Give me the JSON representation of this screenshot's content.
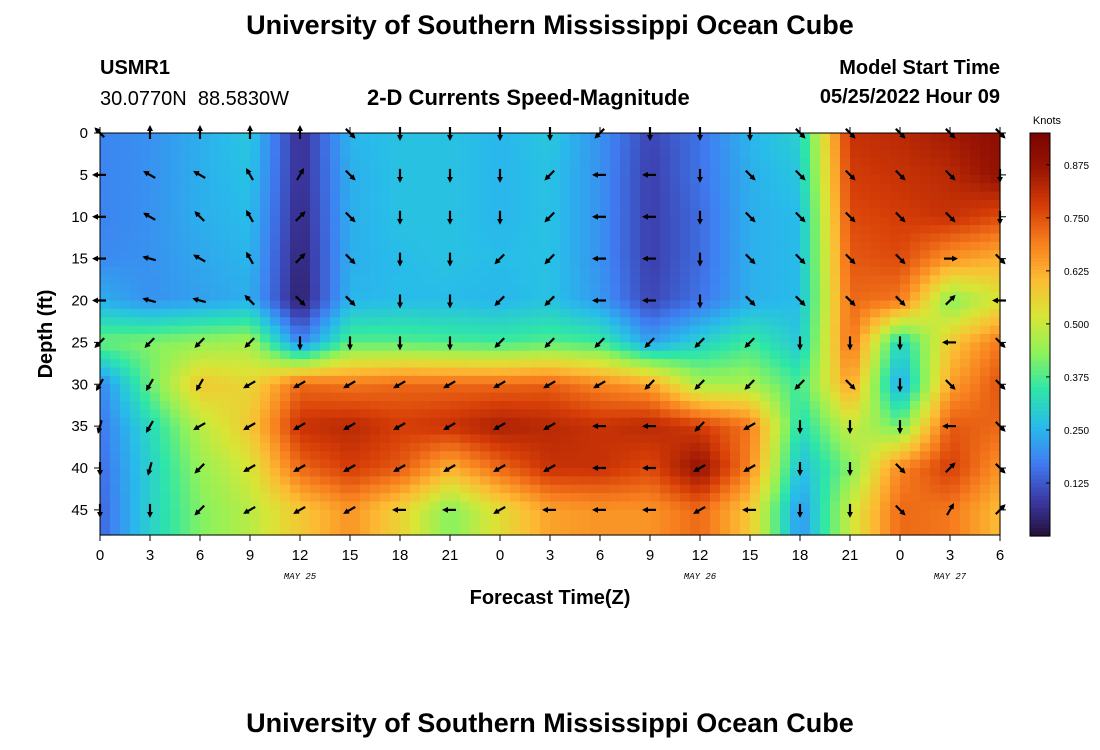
{
  "page": {
    "title": "University of Southern Mississippi Ocean Cube",
    "footer_title": "University of Southern Mississippi Ocean Cube"
  },
  "header": {
    "station_id": "USMR1",
    "coords": "30.0770N  88.5830W",
    "subtitle": "2-D Currents Speed-Magnitude",
    "start_label": "Model Start Time",
    "start_value": "05/25/2022 Hour 09"
  },
  "chart_data": {
    "type": "heatmap",
    "title": "2-D Currents Speed-Magnitude",
    "xlabel": "Forecast Time(Z)",
    "ylabel": "Depth (ft)",
    "colorbar_label": "Knots",
    "x_ticks": [
      "0",
      "3",
      "6",
      "9",
      "12",
      "15",
      "18",
      "21",
      "0",
      "3",
      "6",
      "9",
      "12",
      "15",
      "18",
      "21",
      "0",
      "3",
      "6"
    ],
    "x_hours": [
      0,
      3,
      6,
      9,
      12,
      15,
      18,
      21,
      24,
      27,
      30,
      33,
      36,
      39,
      42,
      45,
      48,
      51,
      54
    ],
    "date_labels": [
      {
        "label": "MAY 25",
        "hour": 12
      },
      {
        "label": "MAY 26",
        "hour": 36
      },
      {
        "label": "MAY 27",
        "hour": 51
      }
    ],
    "y_ticks": [
      0,
      5,
      10,
      15,
      20,
      25,
      30,
      35,
      40,
      45
    ],
    "ylim": [
      0,
      48
    ],
    "xlim": [
      0,
      54
    ],
    "colorbar_ticks": [
      "0.125",
      "0.250",
      "0.375",
      "0.500",
      "0.625",
      "0.750",
      "0.875"
    ],
    "colorbar_range": [
      0,
      0.95
    ],
    "colormap": [
      "#23103a",
      "#3c3aa8",
      "#3f7ef2",
      "#28bcea",
      "#2ee6a8",
      "#8ff25a",
      "#d8e636",
      "#fdbb33",
      "#f77e1e",
      "#d63d07",
      "#9a1503",
      "#7a0403"
    ],
    "depths": [
      0,
      5,
      10,
      15,
      20,
      25,
      30,
      35,
      40,
      45
    ],
    "times": [
      0,
      3,
      6,
      9,
      12,
      15,
      18,
      21,
      24,
      27,
      30,
      33,
      36,
      39,
      42,
      45,
      48,
      51,
      54
    ],
    "speeds": [
      [
        0.18,
        0.2,
        0.24,
        0.28,
        0.06,
        0.25,
        0.27,
        0.27,
        0.25,
        0.28,
        0.2,
        0.1,
        0.16,
        0.25,
        0.3,
        0.8,
        0.82,
        0.85,
        0.9
      ],
      [
        0.18,
        0.2,
        0.24,
        0.27,
        0.06,
        0.24,
        0.27,
        0.27,
        0.25,
        0.27,
        0.2,
        0.09,
        0.16,
        0.24,
        0.28,
        0.78,
        0.8,
        0.82,
        0.88
      ],
      [
        0.18,
        0.2,
        0.24,
        0.26,
        0.05,
        0.24,
        0.27,
        0.27,
        0.25,
        0.27,
        0.2,
        0.09,
        0.15,
        0.24,
        0.26,
        0.76,
        0.78,
        0.8,
        0.76
      ],
      [
        0.19,
        0.2,
        0.23,
        0.25,
        0.04,
        0.24,
        0.26,
        0.27,
        0.26,
        0.27,
        0.2,
        0.09,
        0.15,
        0.24,
        0.26,
        0.74,
        0.76,
        0.66,
        0.62
      ],
      [
        0.24,
        0.2,
        0.22,
        0.24,
        0.03,
        0.25,
        0.26,
        0.26,
        0.25,
        0.27,
        0.21,
        0.1,
        0.16,
        0.24,
        0.26,
        0.72,
        0.7,
        0.42,
        0.52
      ],
      [
        0.4,
        0.42,
        0.44,
        0.46,
        0.18,
        0.38,
        0.38,
        0.37,
        0.36,
        0.38,
        0.36,
        0.22,
        0.3,
        0.36,
        0.28,
        0.72,
        0.3,
        0.58,
        0.7
      ],
      [
        0.18,
        0.4,
        0.58,
        0.55,
        0.72,
        0.7,
        0.72,
        0.72,
        0.72,
        0.73,
        0.68,
        0.64,
        0.46,
        0.46,
        0.36,
        0.65,
        0.22,
        0.64,
        0.75
      ],
      [
        0.16,
        0.32,
        0.48,
        0.58,
        0.8,
        0.82,
        0.78,
        0.8,
        0.84,
        0.82,
        0.8,
        0.82,
        0.78,
        0.7,
        0.32,
        0.5,
        0.4,
        0.74,
        0.72
      ],
      [
        0.15,
        0.3,
        0.44,
        0.52,
        0.72,
        0.78,
        0.74,
        0.62,
        0.72,
        0.8,
        0.8,
        0.76,
        0.88,
        0.68,
        0.26,
        0.42,
        0.68,
        0.78,
        0.66
      ],
      [
        0.14,
        0.3,
        0.42,
        0.48,
        0.58,
        0.66,
        0.56,
        0.42,
        0.54,
        0.64,
        0.66,
        0.66,
        0.72,
        0.58,
        0.2,
        0.5,
        0.72,
        0.7,
        0.6
      ]
    ],
    "directions": [
      [
        315,
        0,
        0,
        0,
        0,
        135,
        180,
        180,
        180,
        180,
        225,
        180,
        180,
        180,
        135,
        135,
        135,
        135,
        135
      ],
      [
        270,
        300,
        300,
        330,
        30,
        135,
        180,
        180,
        180,
        225,
        270,
        270,
        180,
        135,
        135,
        135,
        135,
        135,
        180
      ],
      [
        270,
        300,
        315,
        330,
        45,
        135,
        180,
        180,
        180,
        225,
        270,
        270,
        180,
        135,
        135,
        135,
        135,
        135,
        180
      ],
      [
        270,
        285,
        300,
        330,
        45,
        135,
        180,
        180,
        225,
        225,
        270,
        270,
        180,
        135,
        135,
        135,
        135,
        90,
        135
      ],
      [
        270,
        285,
        285,
        315,
        135,
        135,
        180,
        180,
        225,
        225,
        270,
        270,
        180,
        135,
        135,
        135,
        135,
        45,
        270
      ],
      [
        225,
        225,
        225,
        225,
        180,
        180,
        180,
        180,
        225,
        225,
        225,
        225,
        225,
        225,
        180,
        180,
        180,
        270,
        135
      ],
      [
        210,
        210,
        210,
        240,
        240,
        240,
        240,
        240,
        240,
        240,
        240,
        225,
        225,
        225,
        225,
        135,
        180,
        135,
        135
      ],
      [
        195,
        210,
        240,
        240,
        240,
        240,
        240,
        240,
        240,
        240,
        270,
        270,
        225,
        240,
        180,
        180,
        180,
        270,
        135
      ],
      [
        180,
        195,
        225,
        240,
        240,
        240,
        240,
        240,
        240,
        240,
        270,
        270,
        240,
        240,
        180,
        180,
        135,
        45,
        135
      ],
      [
        180,
        180,
        225,
        240,
        240,
        240,
        270,
        270,
        240,
        270,
        270,
        270,
        240,
        270,
        180,
        180,
        135,
        30,
        45
      ]
    ]
  }
}
